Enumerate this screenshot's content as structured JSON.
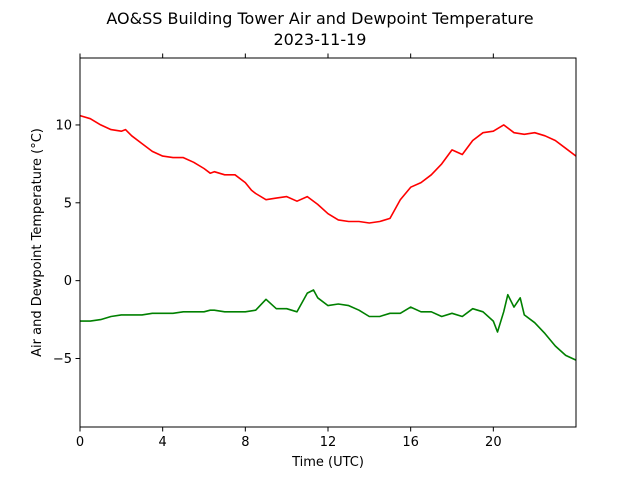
{
  "chart_data": {
    "type": "line",
    "title": "AO&SS Building Tower Air and Dewpoint Temperature",
    "subtitle": "2023-11-19",
    "xlabel": "Time (UTC)",
    "ylabel": "Air and Dewpoint Temperature (°C)",
    "xlim": [
      0,
      24
    ],
    "ylim": [
      -9.4,
      14.3
    ],
    "xticks": [
      0,
      4,
      8,
      12,
      16,
      20
    ],
    "xtick_labels": [
      "0",
      "4",
      "8",
      "12",
      "16",
      "20"
    ],
    "yticks": [
      10,
      5,
      0,
      -5
    ],
    "ytick_labels": [
      "10",
      "5",
      "0",
      "−5"
    ],
    "grid": false,
    "series": [
      {
        "color": "#ff0000",
        "x": [
          0,
          0.5,
          1,
          1.5,
          2,
          2.2,
          2.5,
          3,
          3.5,
          4,
          4.5,
          5,
          5.5,
          6,
          6.3,
          6.5,
          7,
          7.5,
          8,
          8.3,
          8.5,
          9,
          9.5,
          10,
          10.5,
          11,
          11.5,
          12,
          12.5,
          13,
          13.5,
          14,
          14.5,
          15,
          15.5,
          16,
          16.5,
          17,
          17.5,
          18,
          18.5,
          19,
          19.5,
          20,
          20.5,
          21,
          21.5,
          22,
          22.5,
          23,
          23.5,
          24
        ],
        "y": [
          10.6,
          10.4,
          10.0,
          9.7,
          9.6,
          9.7,
          9.3,
          8.8,
          8.3,
          8.0,
          7.9,
          7.9,
          7.6,
          7.2,
          6.9,
          7.0,
          6.8,
          6.8,
          6.3,
          5.8,
          5.6,
          5.2,
          5.3,
          5.4,
          5.1,
          5.4,
          4.9,
          4.3,
          3.9,
          3.8,
          3.8,
          3.7,
          3.8,
          4.0,
          5.2,
          6.0,
          6.3,
          6.8,
          7.5,
          8.4,
          8.1,
          9.0,
          9.5,
          9.6,
          10.0,
          9.5,
          9.4,
          9.5,
          9.3,
          9.0,
          8.5,
          8.0
        ]
      },
      {
        "color": "#008000",
        "x": [
          0,
          0.5,
          1,
          1.5,
          2,
          2.5,
          3,
          3.5,
          4,
          4.5,
          5,
          5.5,
          6,
          6.3,
          6.5,
          7,
          7.5,
          8,
          8.5,
          9,
          9.5,
          10,
          10.5,
          11,
          11.3,
          11.5,
          12,
          12.5,
          13,
          13.5,
          14,
          14.5,
          15,
          15.5,
          16,
          16.5,
          17,
          17.5,
          18,
          18.5,
          19,
          19.5,
          20,
          20.2,
          20.5,
          20.7,
          21,
          21.3,
          21.5,
          22,
          22.5,
          23,
          23.5,
          24
        ],
        "y": [
          -2.6,
          -2.6,
          -2.5,
          -2.3,
          -2.2,
          -2.2,
          -2.2,
          -2.1,
          -2.1,
          -2.1,
          -2.0,
          -2.0,
          -2.0,
          -1.9,
          -1.9,
          -2.0,
          -2.0,
          -2.0,
          -1.9,
          -1.2,
          -1.8,
          -1.8,
          -2.0,
          -0.8,
          -0.6,
          -1.1,
          -1.6,
          -1.5,
          -1.6,
          -1.9,
          -2.3,
          -2.3,
          -2.1,
          -2.1,
          -1.7,
          -2.0,
          -2.0,
          -2.3,
          -2.1,
          -2.3,
          -1.8,
          -2.0,
          -2.6,
          -3.3,
          -2.0,
          -0.9,
          -1.7,
          -1.1,
          -2.2,
          -2.7,
          -3.4,
          -4.2,
          -4.8,
          -5.1
        ]
      }
    ]
  }
}
